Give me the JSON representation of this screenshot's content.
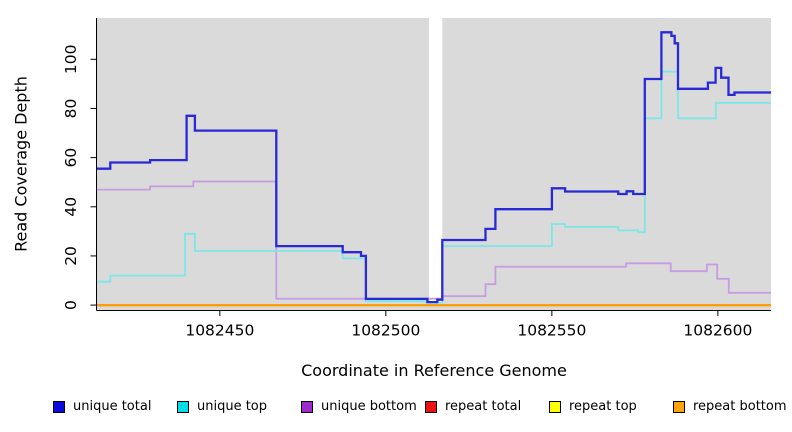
{
  "figure": {
    "background": "#ffffff",
    "plot_background": "#dadada",
    "axis_color": "#000000"
  },
  "chart_data": {
    "type": "line",
    "subtype": "step-after-coverage-profile",
    "title": "",
    "xlabel": "Coordinate in Reference Genome",
    "ylabel": "Read Coverage Depth",
    "xlim": [
      1082413,
      1082616
    ],
    "ylim": [
      -2.2,
      116.8
    ],
    "x_ticks": [
      1082450,
      1082500,
      1082550,
      1082600
    ],
    "y_ticks": [
      0,
      20,
      40,
      60,
      80,
      100
    ],
    "grid": "off",
    "legend_position": "bottom",
    "gap_region": {
      "x1": 1082513,
      "x2": 1082517,
      "color": "#ffffff"
    },
    "series_note": "series listed in draw order (first drawn lowest); points are [x, value] step breakpoints, value holds until next x",
    "series": [
      {
        "name": "repeat total",
        "line_color": "#ee1111",
        "line_width": 2,
        "points": [
          [
            1082413,
            0
          ]
        ]
      },
      {
        "name": "repeat top",
        "line_color": "#ffff00",
        "line_width": 2,
        "points": [
          [
            1082413,
            0
          ]
        ]
      },
      {
        "name": "repeat bottom",
        "line_color": "#ff9d06",
        "line_width": 2.2,
        "points": [
          [
            1082413,
            0
          ]
        ]
      },
      {
        "name": "unique bottom",
        "line_color": "#c79ce3",
        "line_width": 1.8,
        "points": [
          [
            1082413,
            47
          ],
          [
            1082429,
            48.3
          ],
          [
            1082442,
            50.3
          ],
          [
            1082467,
            2.6
          ],
          [
            1082517,
            3.6
          ],
          [
            1082530,
            8.5
          ],
          [
            1082533,
            15.6
          ],
          [
            1082572.4,
            17
          ],
          [
            1082585.8,
            13.8
          ],
          [
            1082596.7,
            16.5
          ],
          [
            1082599.8,
            10.7
          ],
          [
            1082603.3,
            5
          ]
        ]
      },
      {
        "name": "unique top",
        "line_color": "#7de6e8",
        "line_width": 1.8,
        "points": [
          [
            1082413,
            9.5
          ],
          [
            1082417,
            12
          ],
          [
            1082439.5,
            29
          ],
          [
            1082442.5,
            22
          ],
          [
            1082487,
            19
          ],
          [
            1082494,
            1.6
          ],
          [
            1082513,
            0.9
          ],
          [
            1082517,
            24
          ],
          [
            1082550,
            33
          ],
          [
            1082554,
            31.8
          ],
          [
            1082570,
            30.4
          ],
          [
            1082576,
            29.6
          ],
          [
            1082578,
            76
          ],
          [
            1082583,
            95
          ],
          [
            1082588,
            76
          ],
          [
            1082599.4,
            82.3
          ]
        ]
      },
      {
        "name": "unique total",
        "line_color": "#2929d6",
        "line_width": 2.3,
        "points": [
          [
            1082413,
            55.5
          ],
          [
            1082417,
            58
          ],
          [
            1082429,
            59
          ],
          [
            1082440,
            77
          ],
          [
            1082442.5,
            71
          ],
          [
            1082467,
            24
          ],
          [
            1082487,
            21.5
          ],
          [
            1082492.5,
            20
          ],
          [
            1082494,
            2.5
          ],
          [
            1082512.5,
            1.2
          ],
          [
            1082515.5,
            2.2
          ],
          [
            1082517,
            26.5
          ],
          [
            1082530,
            31
          ],
          [
            1082533,
            39
          ],
          [
            1082550,
            47.5
          ],
          [
            1082554,
            46.2
          ],
          [
            1082570,
            45.2
          ],
          [
            1082572.5,
            46.3
          ],
          [
            1082574.5,
            45.2
          ],
          [
            1082578,
            92
          ],
          [
            1082583,
            111
          ],
          [
            1082586,
            109.5
          ],
          [
            1082587,
            106.5
          ],
          [
            1082588,
            88
          ],
          [
            1082597,
            90.5
          ],
          [
            1082599.3,
            96.5
          ],
          [
            1082601,
            92.5
          ],
          [
            1082603.2,
            85.5
          ],
          [
            1082605,
            86.5
          ]
        ]
      }
    ]
  },
  "legend": {
    "items": [
      {
        "label": "unique total",
        "color": "#0b0bdd"
      },
      {
        "label": "unique top",
        "color": "#00dfe8"
      },
      {
        "label": "unique bottom",
        "color": "#9e2bce"
      },
      {
        "label": "repeat total",
        "color": "#ee1111"
      },
      {
        "label": "repeat top",
        "color": "#ffff00"
      },
      {
        "label": "repeat bottom",
        "color": "#ffa40a"
      }
    ]
  }
}
